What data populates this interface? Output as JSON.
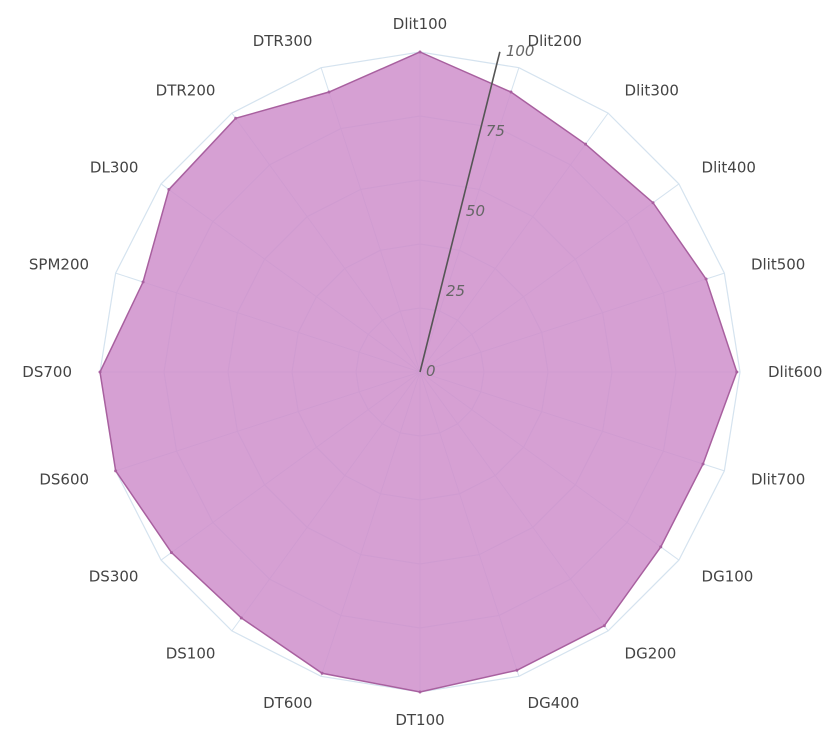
{
  "chart_data": {
    "type": "radar",
    "categories": [
      "Dlit100",
      "Dlit200",
      "Dlit300",
      "Dlit400",
      "Dlit500",
      "Dlit600",
      "Dlit700",
      "DG100",
      "DG200",
      "DG400",
      "DT100",
      "DT600",
      "DS100",
      "DS300",
      "DS600",
      "DS700",
      "SPM200",
      "DL300",
      "DTR200",
      "DTR300"
    ],
    "series": [
      {
        "values": [
          100,
          92,
          88,
          90,
          94,
          99,
          93,
          93,
          98,
          98,
          100,
          99,
          95,
          96,
          100,
          100,
          91,
          97,
          98,
          92
        ]
      }
    ],
    "radial_ticks": [
      "0",
      "25",
      "50",
      "75",
      "100"
    ],
    "rlim": [
      0,
      100
    ],
    "grid": true,
    "colors": {
      "fill": "#cf8fcb",
      "stroke": "#a8609f",
      "grid": "#d5e3ef",
      "axis": "#555555"
    }
  }
}
